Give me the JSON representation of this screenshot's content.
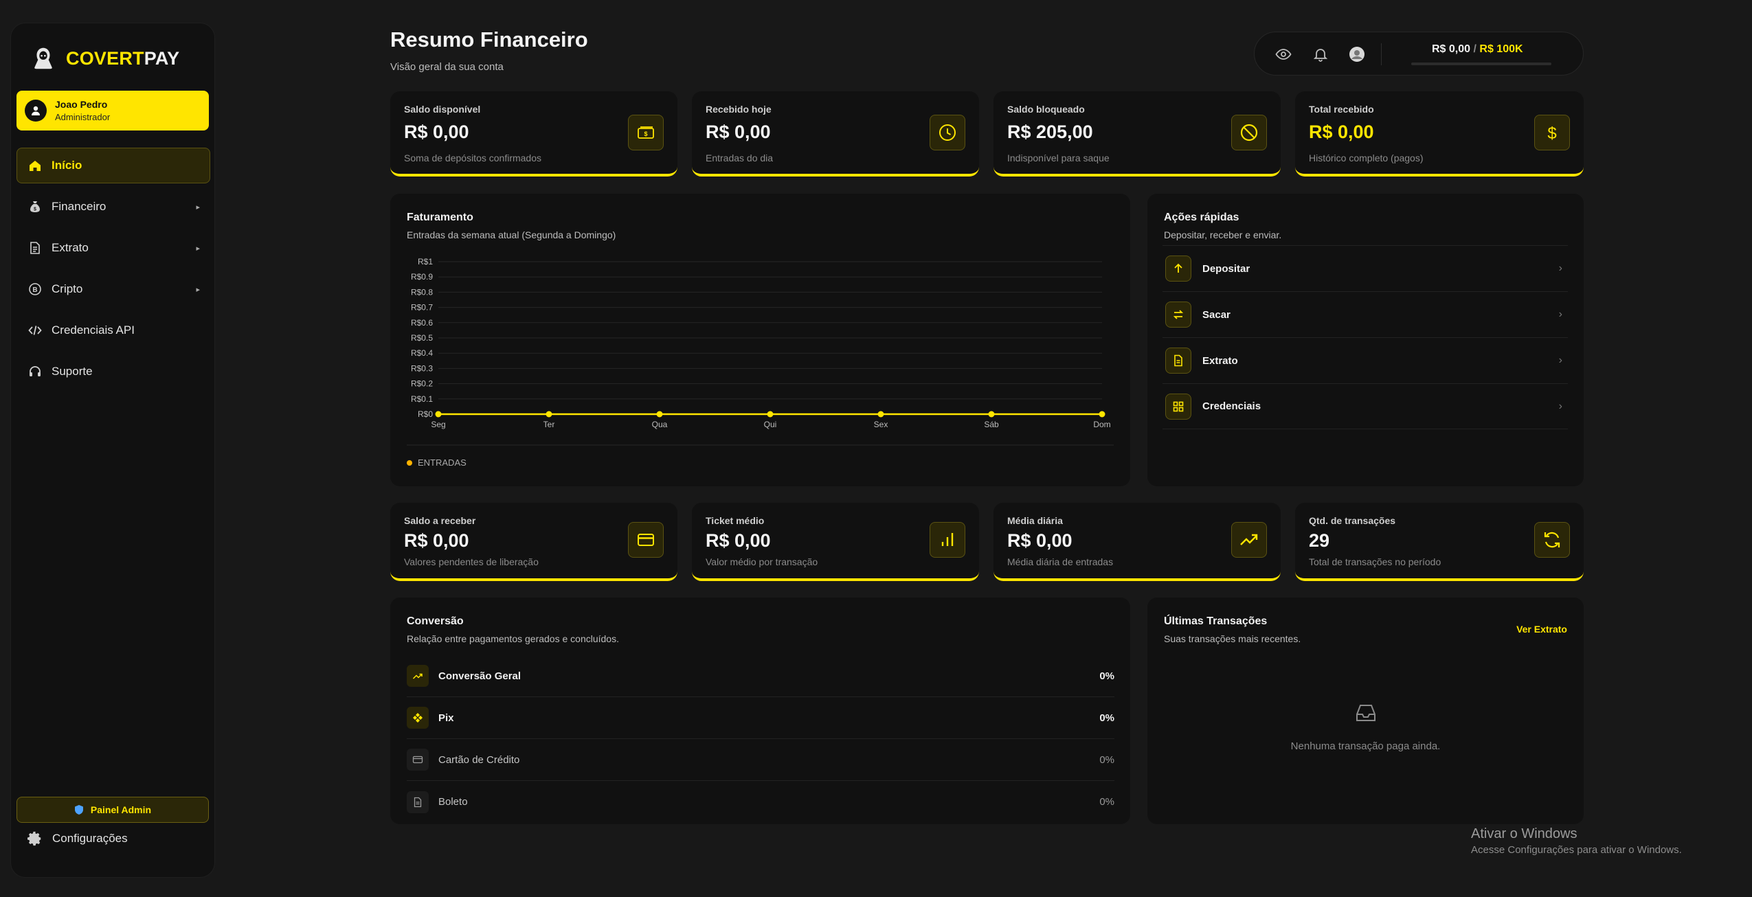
{
  "brand": {
    "part1": "COVERT",
    "part2": "PAY",
    "logo_icon": "hooded-figure-icon"
  },
  "user": {
    "name": "Joao Pedro",
    "role": "Administrador"
  },
  "sidebar": {
    "items": [
      {
        "label": "Início",
        "icon": "home-icon",
        "active": true,
        "has_arrow": false
      },
      {
        "label": "Financeiro",
        "icon": "money-bag-icon",
        "active": false,
        "has_arrow": true
      },
      {
        "label": "Extrato",
        "icon": "document-icon",
        "active": false,
        "has_arrow": true
      },
      {
        "label": "Cripto",
        "icon": "bitcoin-icon",
        "active": false,
        "has_arrow": true
      },
      {
        "label": "Credenciais API",
        "icon": "code-icon",
        "active": false,
        "has_arrow": false
      },
      {
        "label": "Suporte",
        "icon": "headset-icon",
        "active": false,
        "has_arrow": false
      }
    ],
    "arrow_glyph": "▸",
    "admin_button": "Painel Admin",
    "settings": "Configurações"
  },
  "header": {
    "title": "Resumo Financeiro",
    "subtitle": "Visão geral da sua conta",
    "limit_current": "R$ 0,00",
    "limit_separator": "/",
    "limit_max": "R$ 100K"
  },
  "stats_top": [
    {
      "label": "Saldo disponível",
      "value": "R$ 0,00",
      "sub": "Soma de depósitos confirmados",
      "icon": "cash-icon",
      "highlight": false
    },
    {
      "label": "Recebido hoje",
      "value": "R$ 0,00",
      "sub": "Entradas do dia",
      "icon": "clock-icon",
      "highlight": false
    },
    {
      "label": "Saldo bloqueado",
      "value": "R$ 205,00",
      "sub": "Indisponível para saque",
      "icon": "blocked-icon",
      "highlight": false
    },
    {
      "label": "Total recebido",
      "value": "R$ 0,00",
      "sub": "Histórico completo (pagos)",
      "icon": "dollar-icon",
      "highlight": true
    }
  ],
  "chart_panel": {
    "title": "Faturamento",
    "subtitle": "Entradas da semana atual (Segunda a Domingo)",
    "legend": "ENTRADAS"
  },
  "chart_data": {
    "type": "line",
    "categories": [
      "Seg",
      "Ter",
      "Qua",
      "Qui",
      "Sex",
      "Sáb",
      "Dom"
    ],
    "series": [
      {
        "name": "ENTRADAS",
        "values": [
          0,
          0,
          0,
          0,
          0,
          0,
          0
        ],
        "color": "#ffe500"
      }
    ],
    "yticks": [
      "R$0",
      "R$0.1",
      "R$0.2",
      "R$0.3",
      "R$0.4",
      "R$0.5",
      "R$0.6",
      "R$0.7",
      "R$0.8",
      "R$0.9",
      "R$1"
    ],
    "ylim": [
      0,
      1
    ],
    "grid": true,
    "legend_position": "bottom-left"
  },
  "quick_actions": {
    "title": "Ações rápidas",
    "subtitle": "Depositar, receber e enviar.",
    "chevron": "›",
    "items": [
      {
        "label": "Depositar",
        "icon": "arrow-up-icon"
      },
      {
        "label": "Sacar",
        "icon": "swap-icon"
      },
      {
        "label": "Extrato",
        "icon": "file-icon"
      },
      {
        "label": "Credenciais",
        "icon": "grid-icon"
      }
    ]
  },
  "stats_bottom": [
    {
      "label": "Saldo a receber",
      "value": "R$ 0,00",
      "sub": "Valores pendentes de liberação",
      "icon": "credit-card-icon"
    },
    {
      "label": "Ticket médio",
      "value": "R$ 0,00",
      "sub": "Valor médio por transação",
      "icon": "bar-chart-icon"
    },
    {
      "label": "Média diária",
      "value": "R$ 0,00",
      "sub": "Média diária de entradas",
      "icon": "trending-up-icon"
    },
    {
      "label": "Qtd. de transações",
      "value": "29",
      "sub": "Total de transações no período",
      "icon": "refresh-icon"
    }
  ],
  "conversion": {
    "title": "Conversão",
    "subtitle": "Relação entre pagamentos gerados e concluídos.",
    "rows": [
      {
        "label": "Conversão Geral",
        "value": "0%",
        "icon": "trend-icon",
        "emphasis": true
      },
      {
        "label": "Pix",
        "value": "0%",
        "icon": "pix-icon",
        "emphasis": true
      },
      {
        "label": "Cartão de Crédito",
        "value": "0%",
        "icon": "card-icon",
        "emphasis": false
      },
      {
        "label": "Boleto",
        "value": "0%",
        "icon": "boleto-icon",
        "emphasis": false
      }
    ]
  },
  "transactions": {
    "title": "Últimas Transações",
    "subtitle": "Suas transações mais recentes.",
    "see_all": "Ver Extrato",
    "empty": "Nenhuma transação paga ainda."
  },
  "watermark": {
    "title": "Ativar o Windows",
    "subtitle": "Acesse Configurações para ativar o Windows."
  },
  "colors": {
    "accent": "#ffe500",
    "panel": "#111111",
    "background": "#181818"
  }
}
